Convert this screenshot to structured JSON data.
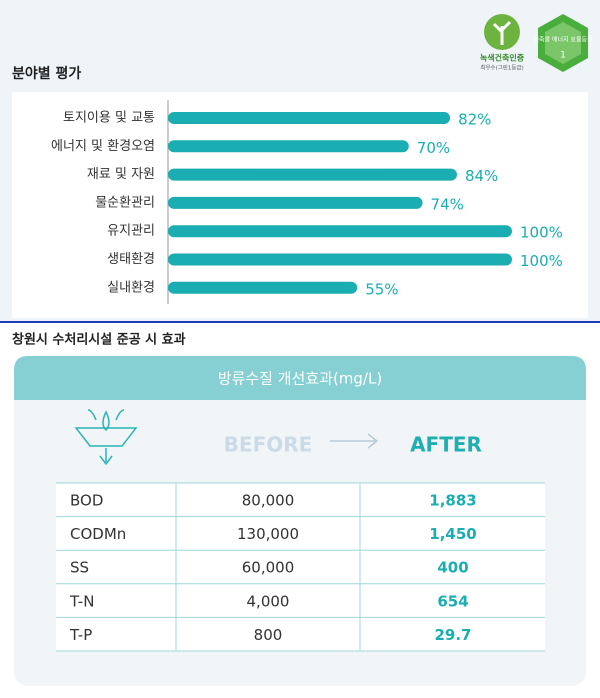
{
  "chart_data": {
    "type": "bar",
    "orientation": "horizontal",
    "title": "분야별 평가",
    "categories": [
      "토지이용 및 교통",
      "에너지 및 환경오염",
      "재료 및 자원",
      "물순환관리",
      "유지관리",
      "생태환경",
      "실내환경"
    ],
    "values": [
      82,
      70,
      84,
      74,
      100,
      100,
      55
    ],
    "value_labels": [
      "82%",
      "70%",
      "84%",
      "74%",
      "100%",
      "100%",
      "55%"
    ],
    "color": "#1aaeb2",
    "xlim": [
      0,
      100
    ]
  },
  "badges": {
    "green": {
      "title": "녹색건축인증",
      "subtitle": "최우수(그린1등급)"
    },
    "energy": {
      "title": "건축물 에너지 효율등급",
      "grade": "1"
    }
  },
  "effect": {
    "title": "창원시 수처리시설 준공 시 효과",
    "table_title": "방류수질 개선효과(mg/L)",
    "before": "BEFORE",
    "after": "AFTER",
    "rows": [
      [
        "BOD",
        "80,000",
        "1,883"
      ],
      [
        "CODMn",
        "130,000",
        "1,450"
      ],
      [
        "SS",
        "60,000",
        "400"
      ],
      [
        "T-N",
        "4,000",
        "654"
      ],
      [
        "T-P",
        "800",
        "29.7"
      ]
    ]
  }
}
